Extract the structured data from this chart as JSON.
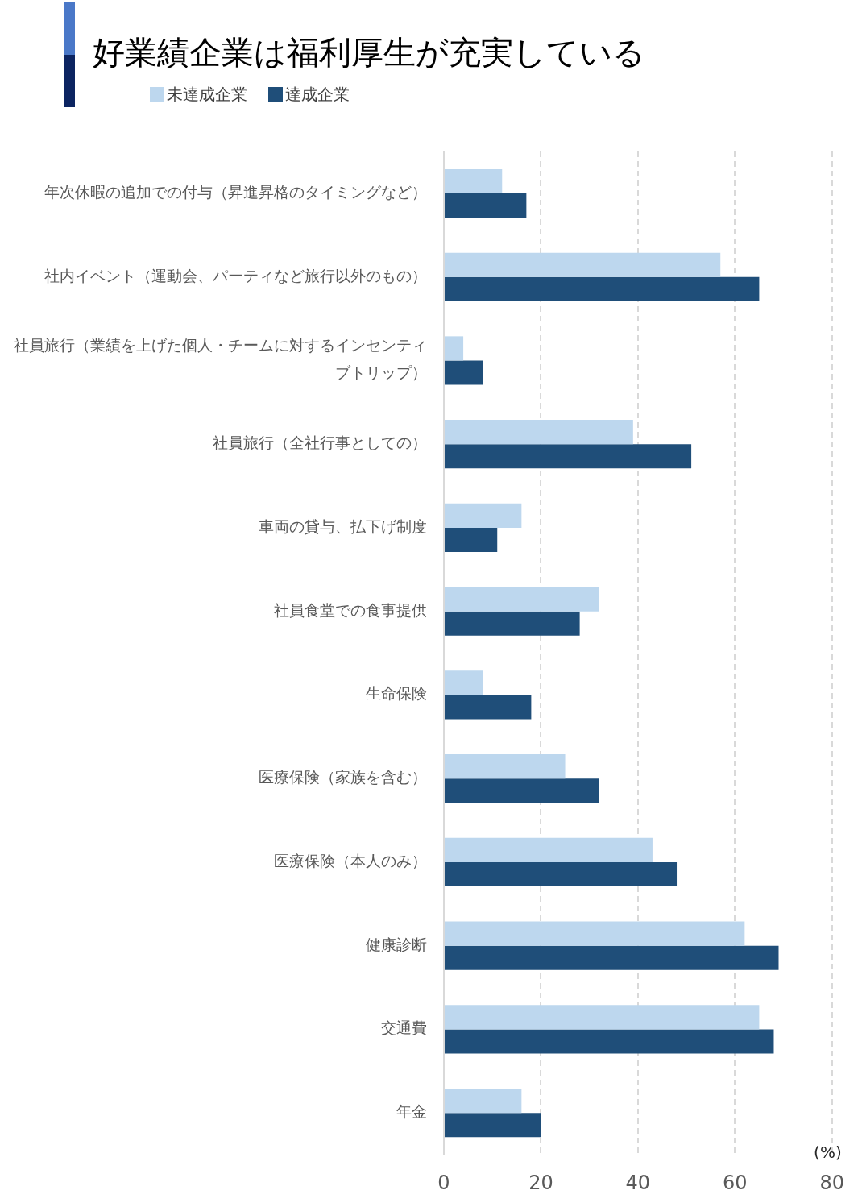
{
  "chart_data": {
    "type": "bar",
    "title": "好業績企業は福利厚生が充実している",
    "xlabel": "(%)",
    "orientation": "horizontal",
    "categories": [
      "年次休暇の追加での付与（昇進昇格のタイミングなど）",
      "社内イベント（運動会、パーティなど旅行以外のもの）",
      "社員旅行（業績を上げた個人・チームに対するインセンティブトリップ）",
      "社員旅行（全社行事としての）",
      "車両の貸与、払下げ制度",
      "社員食堂での食事提供",
      "生命保険",
      "医療保険（家族を含む）",
      "医療保険（本人のみ）",
      "健康診断",
      "交通費",
      "年金"
    ],
    "series": [
      {
        "name": "未達成企業",
        "color": "#bdd7ee",
        "values": [
          12,
          57,
          4,
          39,
          16,
          32,
          8,
          25,
          43,
          62,
          65,
          16
        ]
      },
      {
        "name": "達成企業",
        "color": "#1f4e79",
        "values": [
          17,
          65,
          8,
          51,
          11,
          28,
          18,
          32,
          48,
          69,
          68,
          20
        ]
      }
    ],
    "xlim": [
      0,
      80
    ],
    "xticks": [
      0,
      20,
      40,
      60,
      80
    ],
    "grid": "x",
    "legend": "top left"
  }
}
